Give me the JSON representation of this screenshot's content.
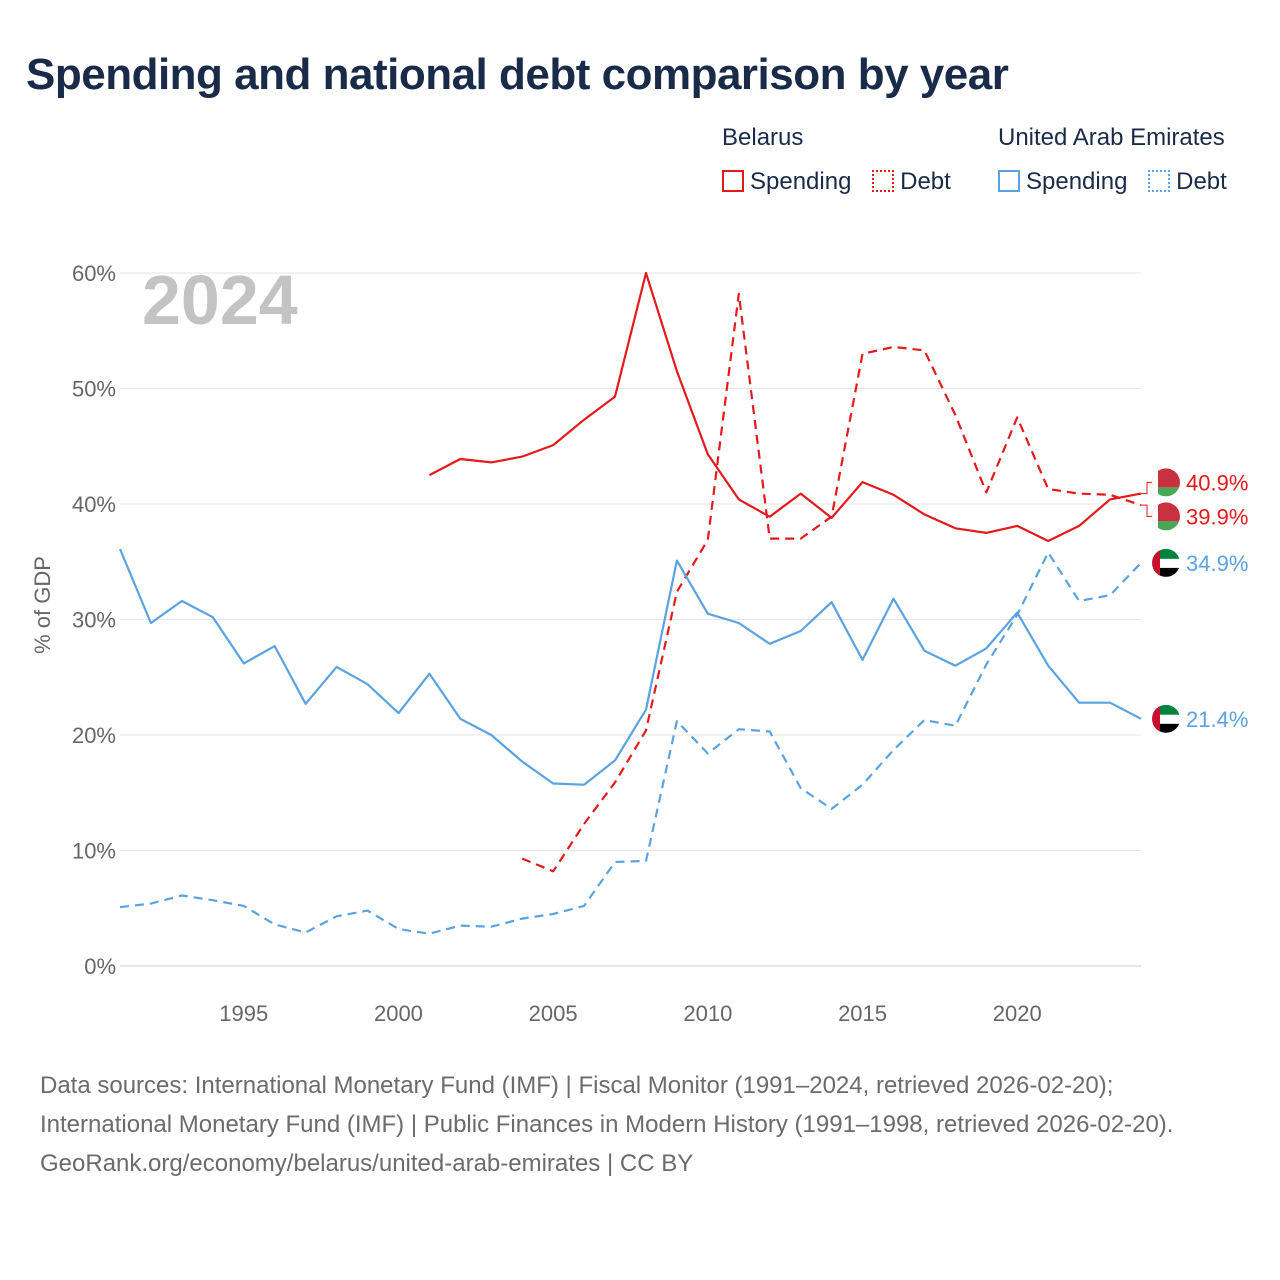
{
  "title": "Spending and national debt comparison by year",
  "legend": {
    "groups": [
      {
        "name": "Belarus",
        "color": "#e31a1c",
        "items": [
          "Spending",
          "Debt"
        ]
      },
      {
        "name": "United Arab Emirates",
        "color": "#5aa3e0",
        "items": [
          "Spending",
          "Debt"
        ]
      }
    ]
  },
  "year_watermark": "2024",
  "footer": {
    "sources": "Data sources: International Monetary Fund (IMF) | Fiscal Monitor (1991–2024, retrieved 2026-02-20); International Monetary Fund (IMF) | Public Finances in Modern History (1991–1998, retrieved 2026-02-20).",
    "credit": "GeoRank.org/economy/belarus/united-arab-emirates | CC BY"
  },
  "chart_data": {
    "type": "line",
    "ylabel": "% of GDP",
    "xlabel": "",
    "xlim": [
      1991,
      2024
    ],
    "ylim": [
      0,
      60
    ],
    "x_ticks": [
      1995,
      2000,
      2005,
      2010,
      2015,
      2020
    ],
    "y_ticks": [
      0,
      10,
      20,
      30,
      40,
      50,
      60
    ],
    "y_tick_labels": [
      "0%",
      "10%",
      "20%",
      "30%",
      "40%",
      "50%",
      "60%"
    ],
    "grid": "horizontal",
    "series": [
      {
        "name": "Belarus Spending",
        "country": "Belarus",
        "metric": "Spending",
        "style": "solid",
        "color": "#e31a1c",
        "end_label": "40.9%",
        "points": [
          [
            2001,
            42.5
          ],
          [
            2002,
            43.9
          ],
          [
            2003,
            43.6
          ],
          [
            2004,
            44.1
          ],
          [
            2005,
            45.1
          ],
          [
            2006,
            47.3
          ],
          [
            2007,
            49.3
          ],
          [
            2008,
            60.0
          ],
          [
            2009,
            51.5
          ],
          [
            2010,
            44.3
          ],
          [
            2011,
            40.4
          ],
          [
            2012,
            38.9
          ],
          [
            2013,
            40.9
          ],
          [
            2014,
            38.8
          ],
          [
            2015,
            41.9
          ],
          [
            2016,
            40.8
          ],
          [
            2017,
            39.1
          ],
          [
            2018,
            37.9
          ],
          [
            2019,
            37.5
          ],
          [
            2020,
            38.1
          ],
          [
            2021,
            36.8
          ],
          [
            2022,
            38.1
          ],
          [
            2023,
            40.4
          ],
          [
            2024,
            40.9
          ]
        ]
      },
      {
        "name": "Belarus Debt",
        "country": "Belarus",
        "metric": "Debt",
        "style": "dashed",
        "color": "#e31a1c",
        "end_label": "39.9%",
        "points": [
          [
            2004,
            9.3
          ],
          [
            2005,
            8.2
          ],
          [
            2006,
            12.3
          ],
          [
            2007,
            15.9
          ],
          [
            2008,
            20.4
          ],
          [
            2009,
            32.4
          ],
          [
            2010,
            36.9
          ],
          [
            2011,
            58.2
          ],
          [
            2012,
            37.0
          ],
          [
            2013,
            37.0
          ],
          [
            2014,
            38.9
          ],
          [
            2015,
            53.0
          ],
          [
            2016,
            53.6
          ],
          [
            2017,
            53.3
          ],
          [
            2018,
            47.7
          ],
          [
            2019,
            41.0
          ],
          [
            2020,
            47.5
          ],
          [
            2021,
            41.3
          ],
          [
            2022,
            40.9
          ],
          [
            2023,
            40.8
          ],
          [
            2024,
            39.9
          ]
        ]
      },
      {
        "name": "United Arab Emirates Spending",
        "country": "United Arab Emirates",
        "metric": "Spending",
        "style": "solid",
        "color": "#5aa3e0",
        "end_label": "21.4%",
        "points": [
          [
            1991,
            36.1
          ],
          [
            1992,
            29.7
          ],
          [
            1993,
            31.6
          ],
          [
            1994,
            30.2
          ],
          [
            1995,
            26.2
          ],
          [
            1996,
            27.7
          ],
          [
            1997,
            22.7
          ],
          [
            1998,
            25.9
          ],
          [
            1999,
            24.4
          ],
          [
            2000,
            21.9
          ],
          [
            2001,
            25.3
          ],
          [
            2002,
            21.4
          ],
          [
            2003,
            20.0
          ],
          [
            2004,
            17.7
          ],
          [
            2005,
            15.8
          ],
          [
            2006,
            15.7
          ],
          [
            2007,
            17.8
          ],
          [
            2008,
            22.2
          ],
          [
            2009,
            35.1
          ],
          [
            2010,
            30.5
          ],
          [
            2011,
            29.7
          ],
          [
            2012,
            27.9
          ],
          [
            2013,
            29.0
          ],
          [
            2014,
            31.5
          ],
          [
            2015,
            26.5
          ],
          [
            2016,
            31.8
          ],
          [
            2017,
            27.3
          ],
          [
            2018,
            26.0
          ],
          [
            2019,
            27.5
          ],
          [
            2020,
            30.6
          ],
          [
            2021,
            26.0
          ],
          [
            2022,
            22.8
          ],
          [
            2023,
            22.8
          ],
          [
            2024,
            21.4
          ]
        ]
      },
      {
        "name": "United Arab Emirates Debt",
        "country": "United Arab Emirates",
        "metric": "Debt",
        "style": "dashed",
        "color": "#5aa3e0",
        "end_label": "34.9%",
        "points": [
          [
            1991,
            5.1
          ],
          [
            1992,
            5.4
          ],
          [
            1993,
            6.1
          ],
          [
            1994,
            5.7
          ],
          [
            1995,
            5.2
          ],
          [
            1996,
            3.6
          ],
          [
            1997,
            2.9
          ],
          [
            1998,
            4.3
          ],
          [
            1999,
            4.8
          ],
          [
            2000,
            3.2
          ],
          [
            2001,
            2.8
          ],
          [
            2002,
            3.5
          ],
          [
            2003,
            3.4
          ],
          [
            2004,
            4.1
          ],
          [
            2005,
            4.5
          ],
          [
            2006,
            5.2
          ],
          [
            2007,
            9.0
          ],
          [
            2008,
            9.1
          ],
          [
            2009,
            21.2
          ],
          [
            2010,
            18.4
          ],
          [
            2011,
            20.5
          ],
          [
            2012,
            20.3
          ],
          [
            2013,
            15.4
          ],
          [
            2014,
            13.6
          ],
          [
            2015,
            15.7
          ],
          [
            2016,
            18.7
          ],
          [
            2017,
            21.3
          ],
          [
            2018,
            20.8
          ],
          [
            2019,
            26.1
          ],
          [
            2020,
            30.4
          ],
          [
            2021,
            35.8
          ],
          [
            2022,
            31.6
          ],
          [
            2023,
            32.1
          ],
          [
            2024,
            34.9
          ]
        ]
      }
    ]
  }
}
